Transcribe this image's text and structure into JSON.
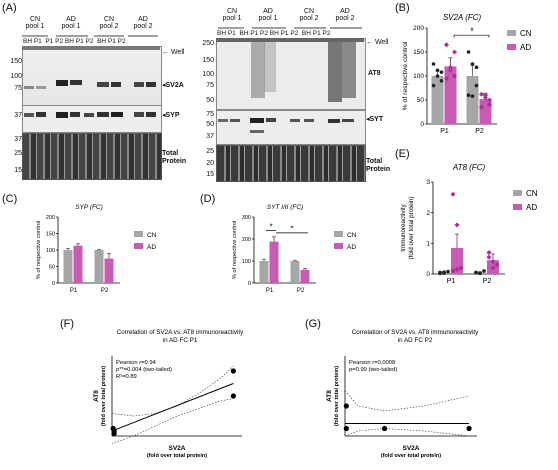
{
  "panels": {
    "A": "(A)",
    "B": "(B)",
    "C": "(C)",
    "D": "(D)",
    "E": "(E)",
    "F": "(F)",
    "G": "(G)"
  },
  "blot_left": {
    "groups": [
      "CN\npool 1",
      "AD\npool 1",
      "CN\npool 2",
      "AD\npool 2"
    ],
    "lanes": [
      "BH",
      "P1",
      "P1",
      "P2",
      "BH",
      "P1",
      "P2",
      "BH",
      "P1",
      "P2"
    ],
    "mw_sv2a": [
      "150",
      "100",
      "75"
    ],
    "mw_syp": [
      "37"
    ],
    "mw_total": [
      "37",
      "25",
      "15"
    ],
    "labels": {
      "well": "Well",
      "sv2a": "SV2A",
      "syp": "SYP",
      "total": "Total\nProtein"
    }
  },
  "blot_right": {
    "groups": [
      "CN\npool 1",
      "AD\npool 1",
      "CN\npool 2",
      "AD\npool 2"
    ],
    "lanes": [
      "BH",
      "P1",
      "BH",
      "P1",
      "P2",
      "BH",
      "P1",
      "P2",
      "BH",
      "P1",
      "P2"
    ],
    "mw_at8": [
      "250",
      "150",
      "100",
      "75",
      "50"
    ],
    "mw_syt": [
      "75",
      "50",
      "37"
    ],
    "mw_total": [
      "25",
      "20",
      "15"
    ],
    "labels": {
      "well": "Well",
      "at8": "AT8",
      "syt": "SYT",
      "total": "Total\nProtein"
    }
  },
  "legend": {
    "cn": "CN",
    "ad": "AD",
    "cn_color": "#a6a6a6",
    "ad_color": "#c95bb5"
  },
  "chart_data": [
    {
      "id": "B",
      "type": "bar",
      "title": "SV2A (FC)",
      "ylabel": "% of respective control",
      "categories": [
        "P1",
        "P2"
      ],
      "ylim": [
        0,
        200
      ],
      "yticks": [
        0,
        50,
        100,
        150,
        200
      ],
      "series": [
        {
          "name": "CN",
          "values": [
            100,
            100
          ],
          "err": [
            12,
            22
          ]
        },
        {
          "name": "AD",
          "values": [
            120,
            52
          ],
          "err": [
            18,
            12
          ]
        }
      ],
      "points": {
        "CN": [
          [
            125,
            100,
            90,
            80,
            112,
            108
          ],
          [
            150,
            125,
            80,
            60,
            58,
            118
          ]
        ],
        "AD": [
          [
            165,
            118,
            150,
            95,
            112,
            100
          ],
          [
            62,
            60,
            40,
            35,
            55,
            50
          ]
        ]
      },
      "annotation": "*"
    },
    {
      "id": "C",
      "type": "bar",
      "title": "SYP (FC)",
      "ylabel": "% of respective control",
      "categories": [
        "P1",
        "P2"
      ],
      "ylim": [
        0,
        200
      ],
      "yticks": [
        0,
        50,
        100,
        150,
        200
      ],
      "series": [
        {
          "name": "CN",
          "values": [
            100,
            100
          ],
          "err": [
            5,
            2
          ]
        },
        {
          "name": "AD",
          "values": [
            113,
            74
          ],
          "err": [
            6,
            15
          ]
        }
      ]
    },
    {
      "id": "D",
      "type": "bar",
      "title": "SYT I/II (FC)",
      "ylabel": "% of respective control",
      "categories": [
        "P1",
        "P2"
      ],
      "ylim": [
        0,
        300
      ],
      "yticks": [
        0,
        100,
        200,
        300
      ],
      "series": [
        {
          "name": "CN",
          "values": [
            100,
            100
          ],
          "err": [
            8,
            3
          ]
        },
        {
          "name": "AD",
          "values": [
            188,
            60
          ],
          "err": [
            22,
            5
          ]
        }
      ],
      "annotation": "*"
    },
    {
      "id": "E",
      "type": "bar",
      "title": "AT8 (FC)",
      "ylabel": "Immunoreactivity\n(fold over total protein)",
      "categories": [
        "P1",
        "P2"
      ],
      "ylim": [
        0,
        3
      ],
      "yticks": [
        0,
        1,
        2,
        3
      ],
      "series": [
        {
          "name": "CN",
          "values": [
            0.05,
            0.05
          ],
          "err": [
            0.02,
            0.02
          ]
        },
        {
          "name": "AD",
          "values": [
            0.85,
            0.45
          ],
          "err": [
            0.45,
            0.2
          ]
        }
      ],
      "points": {
        "CN": [
          [
            0.05,
            0.03,
            0.08,
            0.02,
            0.06
          ],
          [
            0.05,
            0.02,
            0.1,
            0.04,
            0.03
          ]
        ],
        "AD": [
          [
            2.6,
            1.6,
            0.2,
            0.1,
            0.15
          ],
          [
            0.7,
            0.4,
            0.3,
            0.55,
            0.2
          ]
        ]
      }
    },
    {
      "id": "F",
      "type": "scatter",
      "title": "Correlation of SV2A vs. AT8 immunoreactivity\nin AD FC P1",
      "xlabel": "SV2A\n(fold over total protein)",
      "ylabel": "AT8\n(fold over total protein)",
      "xlim": [
        0,
        6
      ],
      "ylim": [
        0,
        3.2
      ],
      "x": [
        0.05,
        0.1,
        0.1,
        5.6,
        5.6
      ],
      "y": [
        0.3,
        0.1,
        0.2,
        1.6,
        2.6
      ],
      "stats": [
        "Pearson r=0.94",
        "p**=0.004 (two-tailed)",
        "R²=0.89"
      ]
    },
    {
      "id": "G",
      "type": "scatter",
      "title": "Correlation of SV2A vs. AT8 immunoreactivity\nin AD FC P2",
      "xlabel": "SV2A\n(fold over total protein)",
      "ylabel": "AT8\n(fold over total protein)",
      "xlim": [
        0,
        5
      ],
      "ylim": [
        0,
        3.2
      ],
      "x": [
        0.05,
        0.05,
        1.5,
        4.7
      ],
      "y": [
        1.2,
        0.3,
        0.3,
        0.3
      ],
      "stats": [
        "Pearson r=0.0008",
        "p=0.99 (two-tailed)"
      ]
    }
  ]
}
